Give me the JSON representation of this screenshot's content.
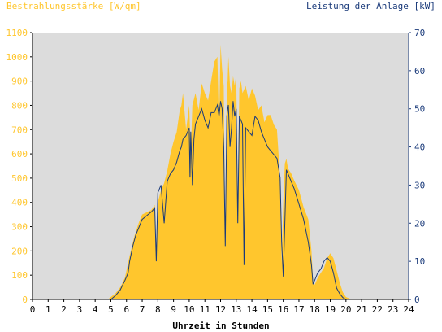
{
  "chart_data": {
    "type": "area",
    "title": "",
    "ylabel_left": "Bestrahlungsstärke [W/qm]",
    "ylabel_right": "Leistung der Anlage [kW]",
    "xlabel": "Uhrzeit in Stunden",
    "x_ticks": [
      "0",
      "1",
      "2",
      "3",
      "4",
      "5",
      "6",
      "7",
      "8",
      "9",
      "10",
      "11",
      "12",
      "13",
      "14",
      "15",
      "16",
      "17",
      "18",
      "19",
      "20",
      "21",
      "22",
      "23",
      "24"
    ],
    "y_left_ticks": [
      "0",
      "100",
      "200",
      "300",
      "400",
      "500",
      "600",
      "700",
      "800",
      "900",
      "1000",
      "1100"
    ],
    "y_right_ticks": [
      "0",
      "10",
      "20",
      "30",
      "40",
      "50",
      "60",
      "70"
    ],
    "xlim": [
      0,
      24
    ],
    "ylim_left": [
      0,
      1100
    ],
    "ylim_right": [
      0,
      70
    ],
    "grid": false,
    "series": [
      {
        "name": "Bestrahlungsstärke [W/qm]",
        "axis": "left",
        "color": "#ffc62d",
        "x": [
          0,
          4.8,
          5.0,
          5.3,
          5.6,
          5.9,
          6.2,
          6.5,
          6.8,
          7.0,
          7.3,
          7.6,
          7.8,
          7.9,
          8.0,
          8.2,
          8.4,
          8.6,
          8.8,
          9.0,
          9.2,
          9.4,
          9.5,
          9.6,
          9.8,
          10.0,
          10.1,
          10.2,
          10.4,
          10.6,
          10.8,
          11.0,
          11.2,
          11.4,
          11.6,
          11.8,
          11.9,
          12.0,
          12.1,
          12.2,
          12.3,
          12.4,
          12.45,
          12.5,
          12.6,
          12.7,
          12.8,
          12.9,
          13.0,
          13.1,
          13.2,
          13.3,
          13.4,
          13.6,
          13.8,
          14.0,
          14.2,
          14.4,
          14.6,
          14.8,
          15.0,
          15.2,
          15.4,
          15.6,
          15.8,
          15.9,
          16.0,
          16.1,
          16.2,
          16.3,
          16.5,
          16.7,
          17.0,
          17.3,
          17.6,
          17.8,
          17.9,
          18.0,
          18.2,
          18.4,
          18.6,
          18.8,
          19.0,
          19.2,
          19.4,
          19.6,
          19.8,
          20.0,
          20.3,
          20.6,
          24
        ],
        "values": [
          0,
          0,
          10,
          25,
          50,
          90,
          180,
          260,
          320,
          350,
          360,
          370,
          390,
          150,
          400,
          450,
          480,
          530,
          600,
          650,
          690,
          780,
          800,
          850,
          700,
          800,
          600,
          800,
          850,
          780,
          890,
          850,
          820,
          900,
          980,
          1000,
          700,
          1050,
          950,
          880,
          230,
          870,
          900,
          1000,
          880,
          850,
          920,
          880,
          930,
          350,
          870,
          900,
          850,
          880,
          820,
          870,
          840,
          780,
          800,
          730,
          760,
          760,
          720,
          700,
          500,
          150,
          400,
          560,
          580,
          540,
          520,
          490,
          450,
          380,
          330,
          200,
          80,
          60,
          90,
          110,
          130,
          170,
          190,
          170,
          120,
          70,
          30,
          10,
          2,
          0,
          0
        ]
      },
      {
        "name": "Leistung der Anlage [kW]",
        "axis": "right",
        "color": "#1a3a7a",
        "x": [
          0,
          5.0,
          5.3,
          5.6,
          5.9,
          6.0,
          6.1,
          6.2,
          6.4,
          6.6,
          6.8,
          7.0,
          7.3,
          7.6,
          7.8,
          7.9,
          8.0,
          8.2,
          8.4,
          8.6,
          8.8,
          9.0,
          9.2,
          9.4,
          9.5,
          9.6,
          9.8,
          10.0,
          10.05,
          10.1,
          10.2,
          10.3,
          10.4,
          10.6,
          10.8,
          11.0,
          11.2,
          11.4,
          11.6,
          11.8,
          11.9,
          12.0,
          12.1,
          12.2,
          12.3,
          12.4,
          12.45,
          12.5,
          12.6,
          12.7,
          12.8,
          12.9,
          13.0,
          13.1,
          13.2,
          13.3,
          13.4,
          13.5,
          13.6,
          13.8,
          14.0,
          14.2,
          14.4,
          14.6,
          14.8,
          15.0,
          15.2,
          15.4,
          15.6,
          15.8,
          15.9,
          16.0,
          16.1,
          16.2,
          16.3,
          16.5,
          16.7,
          17.0,
          17.3,
          17.6,
          17.8,
          17.9,
          18.0,
          18.2,
          18.4,
          18.6,
          18.8,
          19.0,
          19.2,
          19.4,
          19.6,
          19.8,
          20.0,
          20.3,
          24
        ],
        "values": [
          0,
          0,
          1,
          2.5,
          5,
          6,
          7,
          10,
          14,
          17,
          19,
          21,
          22,
          23,
          24,
          10,
          28,
          30,
          20,
          31,
          33,
          34,
          36,
          39,
          40,
          42,
          43,
          45,
          32,
          44,
          30,
          42,
          46,
          48,
          50,
          47,
          45,
          49,
          49,
          51,
          48,
          52,
          50,
          40,
          14,
          48,
          50,
          51,
          40,
          45,
          52,
          48,
          50,
          20,
          48,
          47,
          46,
          9,
          45,
          44,
          43,
          48,
          47,
          44,
          42,
          40,
          39,
          38,
          37,
          32,
          15,
          6,
          20,
          34,
          33,
          31,
          29,
          25,
          21,
          15,
          9,
          4,
          5,
          7,
          8,
          10,
          11,
          10,
          7,
          3,
          1.5,
          0.5,
          0,
          0,
          0
        ]
      }
    ]
  }
}
